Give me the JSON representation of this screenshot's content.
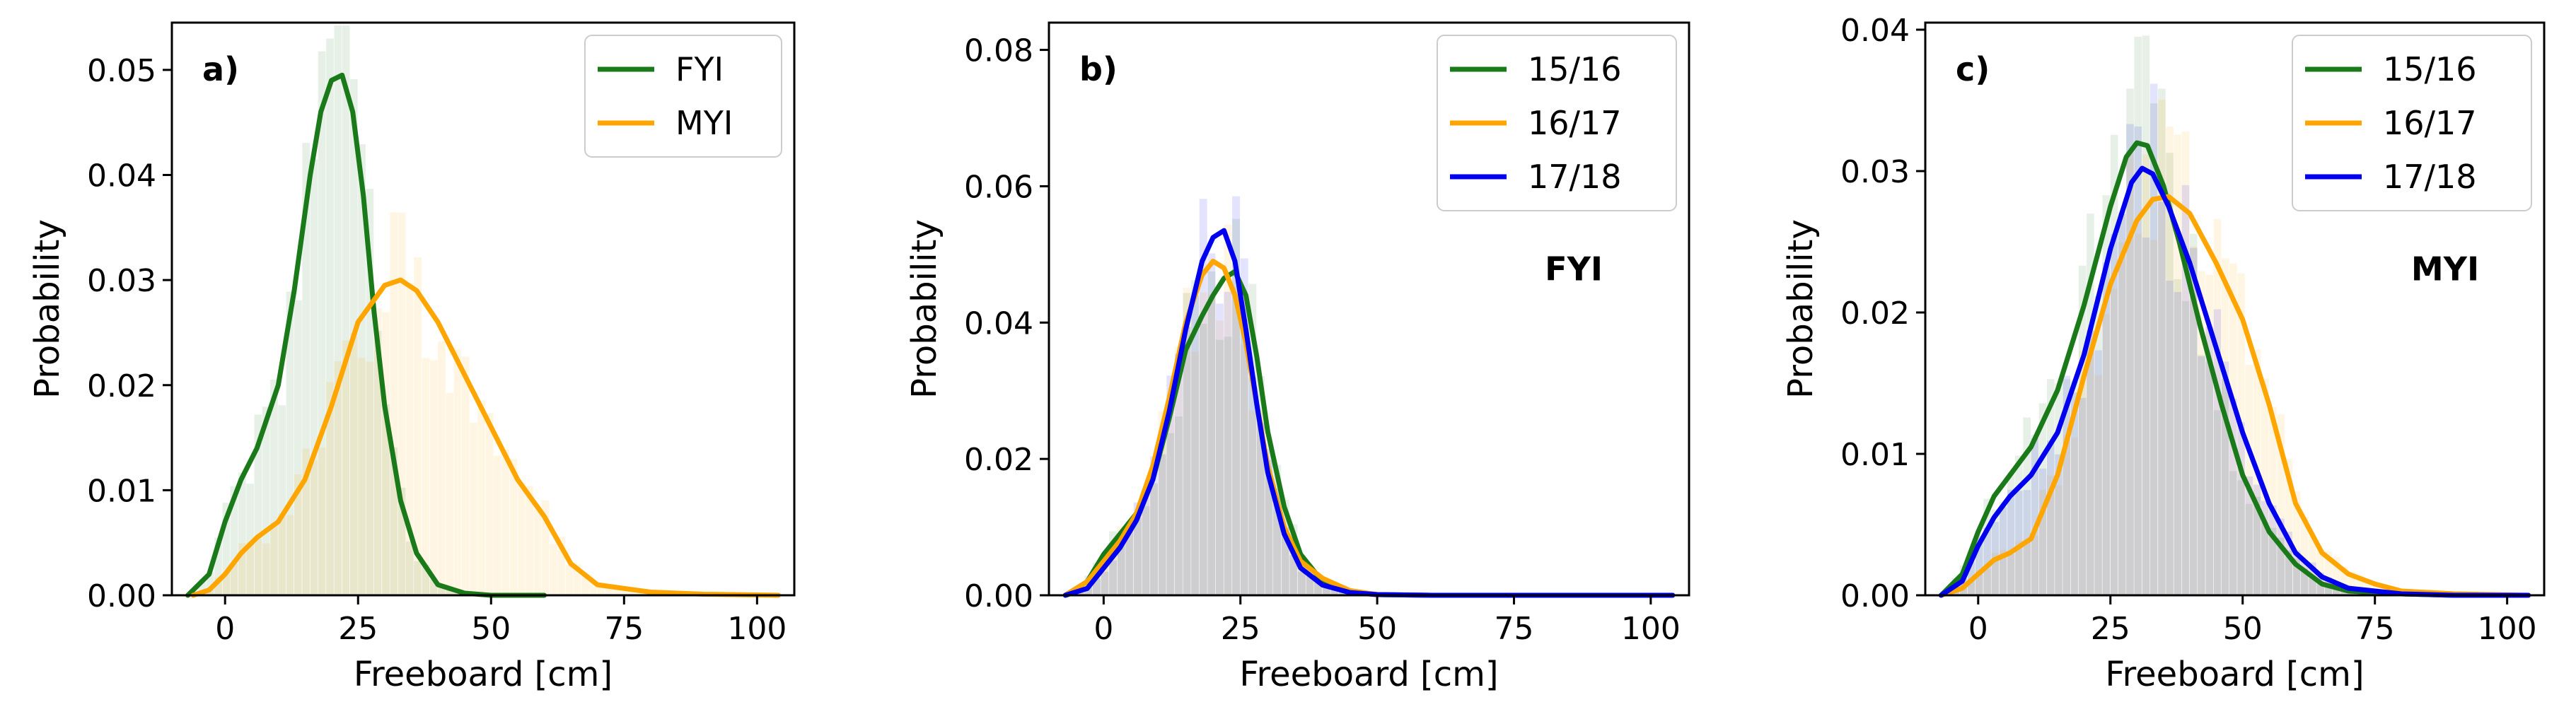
{
  "chart_data": [
    {
      "type": "line",
      "panel_label": "a)",
      "annotation": "",
      "xlabel": "Freeboard [cm]",
      "ylabel": "Probability",
      "xlim": [
        -10,
        107
      ],
      "ylim": [
        0,
        0.0545
      ],
      "xticks": [
        0,
        25,
        50,
        75,
        100
      ],
      "xtick_labels": [
        "0",
        "25",
        "50",
        "75",
        "100"
      ],
      "yticks": [
        0,
        0.01,
        0.02,
        0.03,
        0.04,
        0.05
      ],
      "ytick_labels": [
        "0.00",
        "0.01",
        "0.02",
        "0.03",
        "0.04",
        "0.05"
      ],
      "legend_position": "top-right",
      "series": [
        {
          "name": "FYI",
          "color": "#1a7a1a",
          "x": [
            -7,
            -3,
            0,
            3,
            6,
            10,
            13,
            16,
            18,
            20,
            22,
            24,
            26,
            28,
            30,
            33,
            36,
            40,
            45,
            50,
            60
          ],
          "y": [
            0,
            0.002,
            0.007,
            0.011,
            0.014,
            0.02,
            0.029,
            0.04,
            0.046,
            0.049,
            0.0495,
            0.046,
            0.038,
            0.027,
            0.018,
            0.009,
            0.004,
            0.001,
            0.0002,
            0,
            0
          ]
        },
        {
          "name": "MYI",
          "color": "#ffa500",
          "x": [
            -6,
            -3,
            0,
            3,
            6,
            10,
            15,
            20,
            25,
            30,
            33,
            36,
            40,
            45,
            50,
            55,
            60,
            65,
            70,
            80,
            90,
            104
          ],
          "y": [
            0,
            0.0005,
            0.002,
            0.004,
            0.0055,
            0.007,
            0.011,
            0.018,
            0.026,
            0.0295,
            0.03,
            0.029,
            0.026,
            0.021,
            0.016,
            0.011,
            0.0075,
            0.003,
            0.001,
            0.0003,
            0.0001,
            0
          ]
        }
      ]
    },
    {
      "type": "line",
      "panel_label": "b)",
      "annotation": "FYI",
      "xlabel": "Freeboard [cm]",
      "ylabel": "Probability",
      "xlim": [
        -10,
        107
      ],
      "ylim": [
        0,
        0.084
      ],
      "xticks": [
        0,
        25,
        50,
        75,
        100
      ],
      "xtick_labels": [
        "0",
        "25",
        "50",
        "75",
        "100"
      ],
      "yticks": [
        0,
        0.02,
        0.04,
        0.06,
        0.08
      ],
      "ytick_labels": [
        "0.00",
        "0.02",
        "0.04",
        "0.06",
        "0.08"
      ],
      "legend_position": "top-right",
      "series": [
        {
          "name": "15/16",
          "color": "#1a7a1a",
          "x": [
            -7,
            -3,
            0,
            3,
            6,
            9,
            12,
            15,
            18,
            20,
            22,
            24,
            26,
            28,
            30,
            33,
            36,
            40,
            45,
            50,
            60,
            80,
            104
          ],
          "y": [
            0,
            0.002,
            0.006,
            0.009,
            0.012,
            0.017,
            0.026,
            0.036,
            0.041,
            0.044,
            0.0465,
            0.0475,
            0.044,
            0.035,
            0.024,
            0.013,
            0.006,
            0.002,
            0.0005,
            0.0001,
            0,
            0,
            0
          ]
        },
        {
          "name": "16/17",
          "color": "#ffa500",
          "x": [
            -7,
            -3,
            0,
            3,
            6,
            9,
            12,
            15,
            18,
            20,
            22,
            24,
            26,
            28,
            30,
            33,
            36,
            40,
            45,
            50,
            60,
            80,
            104
          ],
          "y": [
            0,
            0.002,
            0.005,
            0.008,
            0.012,
            0.019,
            0.029,
            0.04,
            0.047,
            0.049,
            0.048,
            0.044,
            0.037,
            0.028,
            0.019,
            0.01,
            0.005,
            0.0025,
            0.0007,
            0.0001,
            0,
            0,
            0
          ]
        },
        {
          "name": "17/18",
          "color": "#0000ee",
          "x": [
            -7,
            -3,
            0,
            3,
            6,
            9,
            12,
            15,
            18,
            20,
            22,
            24,
            26,
            28,
            30,
            33,
            36,
            40,
            45,
            50,
            60,
            80,
            104
          ],
          "y": [
            0,
            0.001,
            0.004,
            0.007,
            0.011,
            0.017,
            0.027,
            0.039,
            0.049,
            0.0525,
            0.0535,
            0.049,
            0.039,
            0.028,
            0.018,
            0.009,
            0.004,
            0.0015,
            0.0004,
            0.0001,
            0,
            0,
            0
          ]
        }
      ]
    },
    {
      "type": "line",
      "panel_label": "c)",
      "annotation": "MYI",
      "xlabel": "Freeboard [cm]",
      "ylabel": "Probability",
      "xlim": [
        -10,
        107
      ],
      "ylim": [
        0,
        0.0405
      ],
      "xticks": [
        0,
        25,
        50,
        75,
        100
      ],
      "xtick_labels": [
        "0",
        "25",
        "50",
        "75",
        "100"
      ],
      "yticks": [
        0,
        0.01,
        0.02,
        0.03,
        0.04
      ],
      "ytick_labels": [
        "0.00",
        "0.01",
        "0.02",
        "0.03",
        "0.04"
      ],
      "legend_position": "top-right",
      "series": [
        {
          "name": "15/16",
          "color": "#1a7a1a",
          "x": [
            -7,
            -3,
            0,
            3,
            6,
            10,
            15,
            20,
            25,
            28,
            30,
            32,
            35,
            38,
            42,
            46,
            50,
            55,
            60,
            65,
            70,
            80,
            90,
            104
          ],
          "y": [
            0,
            0.0015,
            0.0045,
            0.007,
            0.0085,
            0.0105,
            0.0145,
            0.0205,
            0.0275,
            0.031,
            0.032,
            0.0318,
            0.029,
            0.025,
            0.019,
            0.0135,
            0.0085,
            0.0045,
            0.0022,
            0.0008,
            0.0003,
            0.0001,
            0,
            0
          ]
        },
        {
          "name": "16/17",
          "color": "#ffa500",
          "x": [
            -7,
            -3,
            0,
            3,
            6,
            10,
            15,
            20,
            25,
            30,
            33,
            36,
            40,
            45,
            50,
            55,
            60,
            65,
            70,
            75,
            80,
            90,
            104
          ],
          "y": [
            0,
            0.0005,
            0.0015,
            0.0025,
            0.003,
            0.004,
            0.0085,
            0.0155,
            0.022,
            0.0265,
            0.028,
            0.0282,
            0.027,
            0.0235,
            0.0195,
            0.0135,
            0.0065,
            0.003,
            0.0015,
            0.0008,
            0.0003,
            0.0001,
            0
          ]
        },
        {
          "name": "17/18",
          "color": "#0000ee",
          "x": [
            -7,
            -3,
            0,
            3,
            6,
            10,
            15,
            20,
            25,
            29,
            31,
            33,
            36,
            40,
            45,
            50,
            55,
            60,
            65,
            70,
            80,
            90,
            104
          ],
          "y": [
            0,
            0.001,
            0.0035,
            0.0055,
            0.007,
            0.0085,
            0.0115,
            0.017,
            0.0245,
            0.0292,
            0.0302,
            0.0298,
            0.0275,
            0.0235,
            0.0175,
            0.0115,
            0.0065,
            0.003,
            0.0013,
            0.0005,
            0.0001,
            0,
            0
          ]
        }
      ]
    }
  ]
}
